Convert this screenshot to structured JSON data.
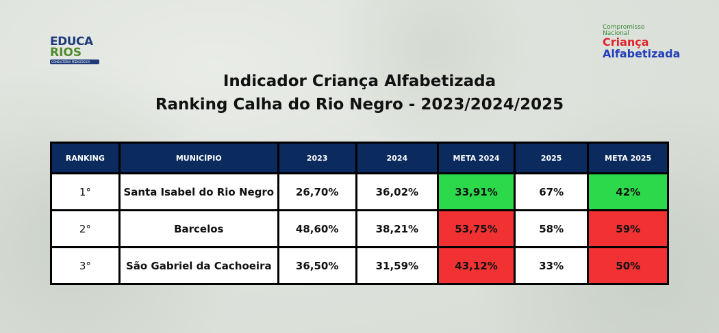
{
  "logos": {
    "left": {
      "line1": "EDUCA",
      "line2": "RIOS",
      "tagline": "CONSULTORIA PEDAGÓGICA"
    },
    "right": {
      "line1": "Compromisso",
      "line2": "Nacional",
      "line3": "Criança",
      "line4": "Alfabetizada"
    }
  },
  "title": "Indicador Criança Alfabetizada",
  "subtitle": "Ranking Calha do Rio Negro - 2023/2024/2025",
  "table": {
    "headers": [
      "RANKING",
      "MUNICÍPIO",
      "2023",
      "2024",
      "META 2024",
      "2025",
      "META 2025"
    ],
    "rows": [
      {
        "rank": "1°",
        "municipio": "Santa Isabel do Rio Negro",
        "y2023": "26,70%",
        "y2024": "36,02%",
        "meta2024": "33,91%",
        "y2025": "67%",
        "meta2025": "42%",
        "meta2024_status": "green",
        "meta2025_status": "green"
      },
      {
        "rank": "2°",
        "municipio": "Barcelos",
        "y2023": "48,60%",
        "y2024": "38,21%",
        "meta2024": "53,75%",
        "y2025": "58%",
        "meta2025": "59%",
        "meta2024_status": "red",
        "meta2025_status": "red"
      },
      {
        "rank": "3°",
        "municipio": "São Gabriel da Cachoeira",
        "y2023": "36,50%",
        "y2024": "31,59%",
        "meta2024": "43,12%",
        "y2025": "33%",
        "meta2025": "50%",
        "meta2024_status": "red",
        "meta2025_status": "red"
      }
    ]
  },
  "colors": {
    "header": "#0b2a5e",
    "green": "#2bd94a",
    "red": "#f23232"
  }
}
